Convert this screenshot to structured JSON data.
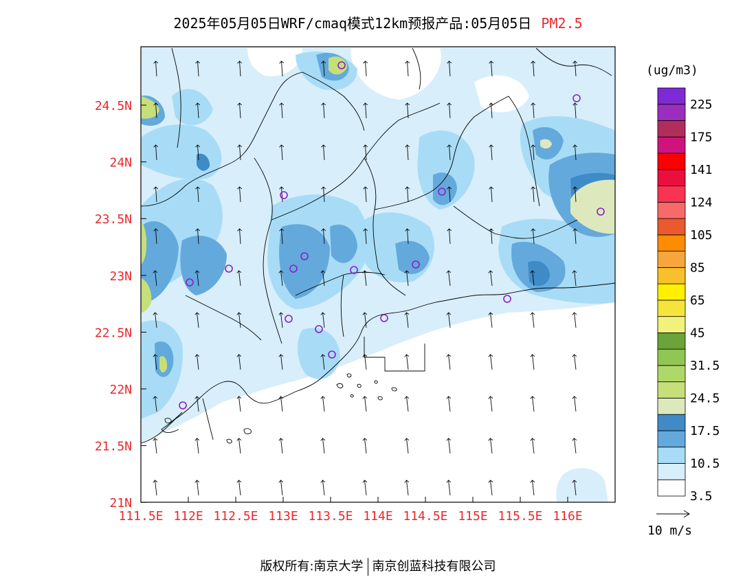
{
  "title": {
    "main": "2025年05月05日WRF/cmaq模式12km预报产品:05月05日",
    "variable": "PM2.5"
  },
  "map": {
    "lat_labels": [
      "24.5N",
      "24N",
      "23.5N",
      "23N",
      "22.5N",
      "22N",
      "21.5N",
      "21N"
    ],
    "lon_labels": [
      "111.5E",
      "112E",
      "112.5E",
      "113E",
      "113.5E",
      "114E",
      "114.5E",
      "115E",
      "115.5E",
      "116E"
    ],
    "wind_direction": "south to north",
    "sites": [
      "site"
    ]
  },
  "colorbar": {
    "unit": "(ug/m3)",
    "labels": [
      "225",
      "175",
      "141",
      "124",
      "105",
      "85",
      "65",
      "45",
      "31.5",
      "24.5",
      "17.5",
      "10.5",
      "3.5"
    ],
    "colors_bottom_to_top": [
      "#ffffff",
      "#d8eefa",
      "#a8dcf6",
      "#64a9dc",
      "#3f8bc8",
      "#dde9bd",
      "#c6df79",
      "#afd86b",
      "#90c654",
      "#6ba43a",
      "#f2f17a",
      "#f6e43c",
      "#fff000",
      "#f7c02c",
      "#f7a63c",
      "#fc8c00",
      "#eb5a2c",
      "#f86a6a",
      "#f83450",
      "#ea0f3c",
      "#fa0000",
      "#d0127e",
      "#b02d5c",
      "#9c2ebe",
      "#7e2ad6"
    ]
  },
  "wind_legend": {
    "label": "10 m/s"
  },
  "footer": {
    "left": "版权所有:南京大学",
    "right": "南京创蓝科技有限公司"
  }
}
